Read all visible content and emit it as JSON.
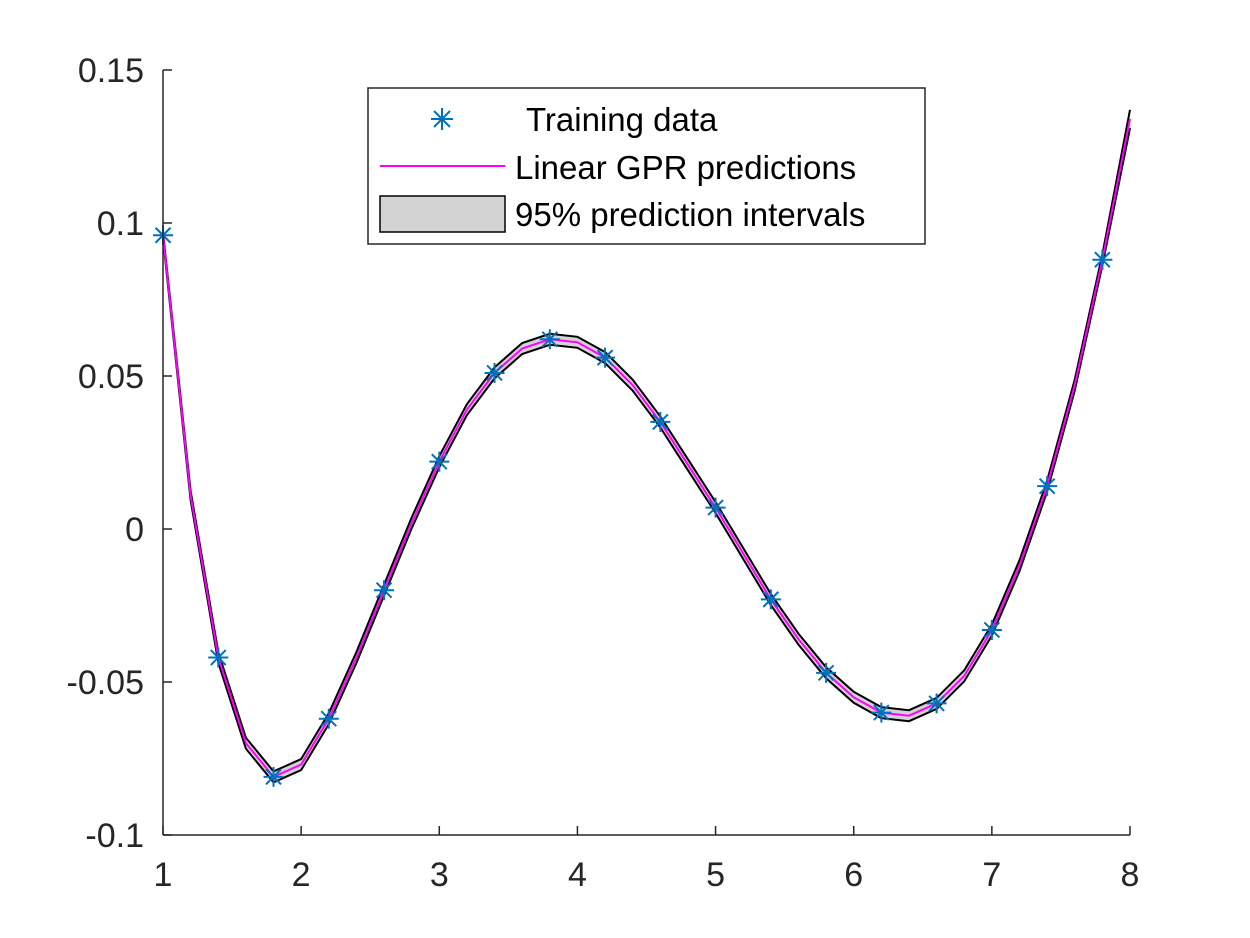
{
  "chart_data": {
    "type": "line",
    "title": "",
    "xlabel": "",
    "ylabel": "",
    "xlim": [
      1,
      8
    ],
    "ylim": [
      -0.1,
      0.15
    ],
    "xticks": [
      "1",
      "2",
      "3",
      "4",
      "5",
      "6",
      "7",
      "8"
    ],
    "yticks": [
      "-0.1",
      "-0.05",
      "0",
      "0.05",
      "0.1",
      "0.15"
    ],
    "grid": false,
    "legend_position": "top-center",
    "legend": [
      {
        "label": "Training data",
        "marker": "asterisk",
        "color": "#0072BD"
      },
      {
        "label": "Linear GPR predictions",
        "marker": "line",
        "color": "#FF00FF"
      },
      {
        "label": "95% prediction intervals",
        "marker": "patch",
        "color": "#D3D3D3"
      }
    ],
    "series": [
      {
        "name": "Training data",
        "kind": "scatter",
        "color": "#0072BD",
        "x": [
          1.0,
          1.4,
          1.8,
          2.2,
          2.6,
          3.0,
          3.4,
          3.8,
          4.2,
          4.6,
          5.0,
          5.4,
          5.8,
          6.2,
          6.6,
          7.0,
          7.4,
          7.8
        ],
        "y": [
          0.096,
          -0.042,
          -0.081,
          -0.062,
          -0.02,
          0.022,
          0.051,
          0.062,
          0.056,
          0.035,
          0.007,
          -0.023,
          -0.047,
          -0.06,
          -0.057,
          -0.033,
          0.014,
          0.088
        ]
      },
      {
        "name": "Linear GPR predictions",
        "kind": "line",
        "color": "#FF00FF",
        "x": [
          1.0,
          1.2,
          1.4,
          1.6,
          1.8,
          2.0,
          2.2,
          2.4,
          2.6,
          2.8,
          3.0,
          3.2,
          3.4,
          3.6,
          3.8,
          4.0,
          4.2,
          4.4,
          4.6,
          4.8,
          5.0,
          5.2,
          5.4,
          5.6,
          5.8,
          6.0,
          6.2,
          6.4,
          6.6,
          6.8,
          7.0,
          7.2,
          7.4,
          7.6,
          7.8,
          8.0
        ],
        "y": [
          0.096,
          0.011,
          -0.042,
          -0.07,
          -0.081,
          -0.077,
          -0.062,
          -0.042,
          -0.02,
          0.002,
          0.022,
          0.039,
          0.051,
          0.059,
          0.062,
          0.061,
          0.056,
          0.047,
          0.035,
          0.021,
          0.007,
          -0.008,
          -0.023,
          -0.036,
          -0.047,
          -0.055,
          -0.06,
          -0.061,
          -0.057,
          -0.048,
          -0.033,
          -0.012,
          0.014,
          0.047,
          0.088,
          0.134
        ]
      },
      {
        "name": "95% prediction intervals",
        "kind": "band",
        "color": "#D3D3D3",
        "x": [
          1.0,
          1.2,
          1.4,
          1.6,
          1.8,
          2.0,
          2.2,
          2.4,
          2.6,
          2.8,
          3.0,
          3.2,
          3.4,
          3.6,
          3.8,
          4.0,
          4.2,
          4.4,
          4.6,
          4.8,
          5.0,
          5.2,
          5.4,
          5.6,
          5.8,
          6.0,
          6.2,
          6.4,
          6.6,
          6.8,
          7.0,
          7.2,
          7.4,
          7.6,
          7.8,
          8.0
        ],
        "lower": [
          0.095,
          0.0095,
          -0.0437,
          -0.0718,
          -0.0828,
          -0.0788,
          -0.0638,
          -0.0438,
          -0.0218,
          0.0002,
          0.0202,
          0.0372,
          0.0492,
          0.0572,
          0.0602,
          0.0592,
          0.0542,
          0.0452,
          0.0332,
          0.0192,
          0.0052,
          -0.0098,
          -0.0248,
          -0.0378,
          -0.0488,
          -0.0568,
          -0.0618,
          -0.0628,
          -0.0588,
          -0.0498,
          -0.0348,
          -0.0138,
          0.0122,
          0.0452,
          0.0862,
          0.131
        ],
        "upper": [
          0.097,
          0.0125,
          -0.0403,
          -0.0682,
          -0.0792,
          -0.0752,
          -0.0602,
          -0.0402,
          -0.0182,
          0.0038,
          0.0238,
          0.0408,
          0.0528,
          0.0608,
          0.0638,
          0.0628,
          0.0578,
          0.0488,
          0.0368,
          0.0228,
          0.0088,
          -0.0062,
          -0.0212,
          -0.0342,
          -0.0452,
          -0.0532,
          -0.0582,
          -0.0592,
          -0.0552,
          -0.0462,
          -0.0312,
          -0.0102,
          0.0158,
          0.0488,
          0.0898,
          0.137
        ]
      }
    ]
  }
}
